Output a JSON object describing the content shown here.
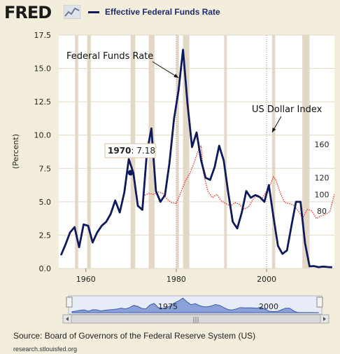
{
  "header": {
    "logo_text": "FRED",
    "logo_icon": "line-graph-icon",
    "legend_label": "Effective Federal Funds Rate",
    "legend_color": "#0e1a5c"
  },
  "chart_data": {
    "type": "line",
    "ylabel": "(Percent)",
    "xlim": [
      1954,
      2015
    ],
    "ylim": [
      0,
      17.5
    ],
    "y_ticks": [
      "0.0",
      "2.5",
      "5.0",
      "7.5",
      "10.0",
      "12.5",
      "15.0",
      "17.5"
    ],
    "x_ticks": [
      "1960",
      "1980",
      "2000"
    ],
    "right_ticks": [
      "80",
      "100",
      "120",
      "160"
    ],
    "grid": true,
    "recession_shading": true,
    "recessions": [
      [
        1957.6,
        1958.3
      ],
      [
        1960.3,
        1961.1
      ],
      [
        1969.9,
        1970.9
      ],
      [
        1973.9,
        1975.2
      ],
      [
        1980.0,
        1980.6
      ],
      [
        1981.5,
        1982.9
      ],
      [
        1990.6,
        1991.2
      ],
      [
        2001.2,
        2001.9
      ],
      [
        2007.9,
        2009.5
      ]
    ],
    "dotted_markers": [
      1980.0,
      2000.0
    ],
    "series": [
      {
        "name": "Effective Federal Funds Rate",
        "color": "#0e1a5c",
        "x": [
          1954.5,
          1955.5,
          1956.5,
          1957.5,
          1958.5,
          1959.5,
          1960.5,
          1961.5,
          1962.5,
          1963.5,
          1964.5,
          1965.5,
          1966.5,
          1967.5,
          1968.5,
          1969.5,
          1970.5,
          1971.5,
          1972.5,
          1973.5,
          1974.5,
          1975.5,
          1976.5,
          1977.5,
          1978.5,
          1979.5,
          1980.5,
          1981.5,
          1982.5,
          1983.5,
          1984.5,
          1985.5,
          1986.5,
          1987.5,
          1988.5,
          1989.5,
          1990.5,
          1991.5,
          1992.5,
          1993.5,
          1994.5,
          1995.5,
          1996.5,
          1997.5,
          1998.5,
          1999.5,
          2000.5,
          2001.5,
          2002.5,
          2003.5,
          2004.5,
          2005.5,
          2006.5,
          2007.5,
          2008.5,
          2009.5,
          2010.5,
          2011.5,
          2012.5,
          2013.5,
          2014.5
        ],
        "values": [
          1.0,
          1.8,
          2.7,
          3.1,
          1.6,
          3.3,
          3.2,
          1.95,
          2.7,
          3.2,
          3.5,
          4.1,
          5.1,
          4.2,
          5.7,
          8.2,
          7.18,
          4.7,
          4.4,
          8.7,
          10.5,
          5.8,
          5.0,
          5.5,
          7.9,
          11.2,
          13.35,
          16.4,
          12.3,
          9.1,
          10.2,
          8.1,
          6.8,
          6.65,
          7.6,
          9.2,
          8.1,
          5.7,
          3.5,
          3.0,
          4.2,
          5.8,
          5.3,
          5.5,
          5.35,
          5.0,
          6.25,
          3.9,
          1.7,
          1.1,
          1.35,
          3.2,
          5.0,
          5.0,
          1.9,
          0.16,
          0.18,
          0.1,
          0.14,
          0.11,
          0.09
        ]
      },
      {
        "name": "US Dollar Index",
        "color": "#e8392d",
        "x": [
          1973.0,
          1974.0,
          1975.0,
          1976.0,
          1977.0,
          1978.0,
          1979.0,
          1980.0,
          1981.0,
          1982.0,
          1983.0,
          1984.0,
          1985.0,
          1985.5,
          1986.0,
          1987.0,
          1988.0,
          1989.0,
          1990.0,
          1991.0,
          1992.0,
          1993.0,
          1994.0,
          1995.0,
          1996.0,
          1997.0,
          1998.0,
          1999.0,
          2000.0,
          2001.0,
          2001.5,
          2002.0,
          2003.0,
          2004.0,
          2005.0,
          2006.0,
          2007.0,
          2008.0,
          2009.0,
          2010.0,
          2011.0,
          2012.0,
          2013.0,
          2014.0,
          2015.0
        ],
        "values": [
          99.0,
          101.0,
          100.0,
          103.0,
          101.0,
          94.0,
          90.0,
          89.0,
          102.0,
          116.0,
          125.0,
          139.0,
          155.0,
          158.0,
          126.0,
          104.0,
          96.0,
          100.0,
          92.0,
          89.0,
          86.0,
          90.0,
          88.0,
          82.0,
          85.0,
          94.0,
          99.0,
          95.0,
          104.0,
          114.0,
          121.0,
          118.0,
          102.0,
          90.0,
          89.0,
          87.0,
          80.0,
          72.0,
          82.0,
          80.0,
          71.0,
          74.0,
          76.0,
          79.0,
          100.0
        ]
      }
    ],
    "annotations": [
      {
        "text": "Federal Funds Rate",
        "target_x": 1980.5,
        "target_y": 14.3
      },
      {
        "text": "US Dollar Index",
        "target_x": 2001.2,
        "target_y": 10.2
      }
    ],
    "tooltip": {
      "year": "1970",
      "value": "7.18",
      "x": 1969.9,
      "y": 7.18
    },
    "navigator": {
      "labels": [
        "1975",
        "2000"
      ],
      "scroll_glyph": "|||"
    }
  },
  "footer": {
    "source": "Source: Board of Governors of the Federal Reserve System (US)",
    "site": "research.stlouisfed.org"
  }
}
